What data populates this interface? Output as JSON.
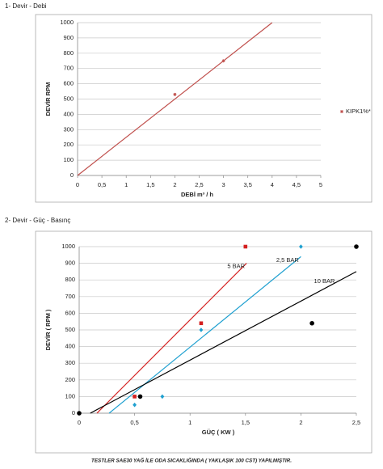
{
  "headings": [
    "1- Devir - Debi",
    "2- Devir - Güç - Basınç"
  ],
  "chart_data": [
    {
      "type": "scatter",
      "x_label": "DEBİ m³ / h",
      "y_label": "DEVİR RPM",
      "xlim": [
        0,
        5
      ],
      "ylim": [
        0,
        1000
      ],
      "xticks": [
        0,
        {
          "value": 0.5,
          "label": "0,5"
        },
        1,
        {
          "value": 1.5,
          "label": "1,5"
        },
        2,
        {
          "value": 2.5,
          "label": "2,5"
        },
        3,
        {
          "value": 3.5,
          "label": "3,5"
        },
        4,
        {
          "value": 4.5,
          "label": "4,5"
        },
        5
      ],
      "yticks": [
        0,
        100,
        200,
        300,
        400,
        500,
        600,
        700,
        800,
        900,
        1000
      ],
      "grid": true,
      "legend": "right",
      "series": [
        {
          "name": "KIPK1%*",
          "color": "#c0504d",
          "marker": "asterisk",
          "x": [
            2,
            3
          ],
          "values": [
            530,
            750
          ],
          "trendline": {
            "x": [
              0,
              4
            ],
            "values": [
              0,
              1000
            ]
          }
        }
      ]
    },
    {
      "type": "scatter",
      "x_label": "GÜÇ ( KW )",
      "y_label": "DEVİR ( RPM )",
      "xlim": [
        0,
        2.5
      ],
      "ylim": [
        0,
        1000
      ],
      "xticks": [
        0,
        {
          "value": 0.5,
          "label": "0,5"
        },
        1,
        {
          "value": 1.5,
          "label": "1,5"
        },
        2,
        {
          "value": 2.5,
          "label": "2,5"
        }
      ],
      "yticks": [
        0,
        100,
        200,
        300,
        400,
        500,
        600,
        700,
        800,
        900,
        1000
      ],
      "grid": true,
      "series": [
        {
          "name": "5 BAR",
          "color": "#d42020",
          "marker": "square",
          "x": [
            0.5,
            1.1,
            1.5
          ],
          "values": [
            100,
            540,
            1000
          ],
          "trendline": {
            "x": [
              0.16,
              1.51
            ],
            "values": [
              0,
              900
            ]
          }
        },
        {
          "name": "2,5 BAR",
          "color": "#1fa0d0",
          "marker": "diamond",
          "x": [
            0.5,
            0.75,
            1.1,
            2
          ],
          "values": [
            50,
            100,
            500,
            1000
          ],
          "trendline": {
            "x": [
              0.27,
              2
            ],
            "values": [
              0,
              940
            ]
          }
        },
        {
          "name": "10 BAR",
          "color": "#000000",
          "marker": "circle",
          "x": [
            0,
            0.55,
            2.1,
            2.5
          ],
          "values": [
            0,
            100,
            540,
            1000
          ],
          "trendline": {
            "x": [
              0.1,
              2.5
            ],
            "values": [
              0,
              850
            ]
          }
        }
      ]
    }
  ],
  "footer": "TESTLER SAE30 YAĞ İLE ODA SICAKLIĞINDA ( YAKLAŞIK 100 CST) YAPILMIŞTIR."
}
